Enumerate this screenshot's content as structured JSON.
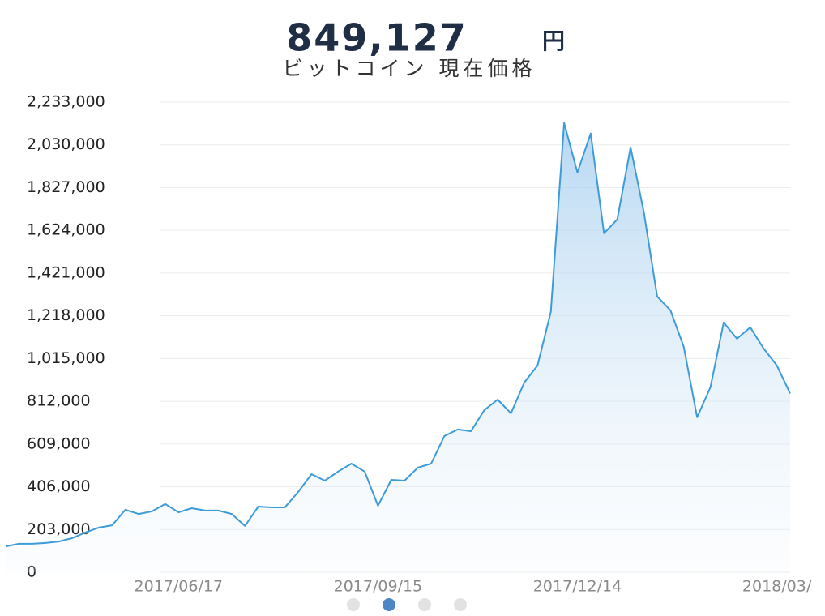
{
  "chart_data": {
    "type": "line",
    "title": "849,127",
    "unit": "円",
    "subtitle": "ビットコイン 現在価格",
    "categories": [
      null,
      null,
      null,
      null,
      null,
      null,
      null,
      null,
      null,
      null,
      null,
      null,
      null,
      "2017/06/17",
      null,
      null,
      null,
      null,
      null,
      null,
      null,
      null,
      null,
      null,
      null,
      null,
      null,
      null,
      "2017/09/15",
      null,
      null,
      null,
      null,
      null,
      null,
      null,
      null,
      null,
      null,
      null,
      null,
      null,
      null,
      "2017/12/14",
      null,
      null,
      null,
      null,
      null,
      null,
      null,
      null,
      null,
      null,
      null,
      null,
      null,
      null,
      "2018/03/",
      null
    ],
    "values": [
      123000,
      135000,
      135000,
      139000,
      146000,
      162000,
      189000,
      212000,
      223000,
      297000,
      277000,
      289000,
      324000,
      285000,
      304000,
      293000,
      293000,
      277000,
      220000,
      312000,
      308000,
      308000,
      381000,
      466000,
      435000,
      478000,
      516000,
      478000,
      316000,
      439000,
      435000,
      497000,
      516000,
      647000,
      678000,
      670000,
      770000,
      820000,
      755000,
      901000,
      982000,
      1237000,
      2134000,
      1899000,
      2084000,
      1610000,
      1676000,
      2018000,
      1710000,
      1310000,
      1244000,
      1071000,
      736000,
      878000,
      1186000,
      1109000,
      1163000,
      1063000,
      982000,
      849127
    ],
    "color": "#3d9bd8",
    "ylim": [
      0,
      2233000
    ],
    "yticks": [
      0,
      {
        "value": 203000,
        "label": "203,000"
      },
      {
        "value": 406000,
        "label": "406,000"
      },
      {
        "value": 609000,
        "label": "609,000"
      },
      {
        "value": 812000,
        "label": "812,000"
      },
      {
        "value": 1015000,
        "label": "1,015,000"
      },
      {
        "value": 1218000,
        "label": "1,218,000"
      },
      {
        "value": 1421000,
        "label": "1,421,000"
      },
      {
        "value": 1624000,
        "label": "1,624,000"
      },
      {
        "value": 1827000,
        "label": "1,827,000"
      },
      {
        "value": 2030000,
        "label": "2,030,000"
      },
      {
        "value": 2233000,
        "label": "2,233,000"
      }
    ],
    "grid": true
  }
}
